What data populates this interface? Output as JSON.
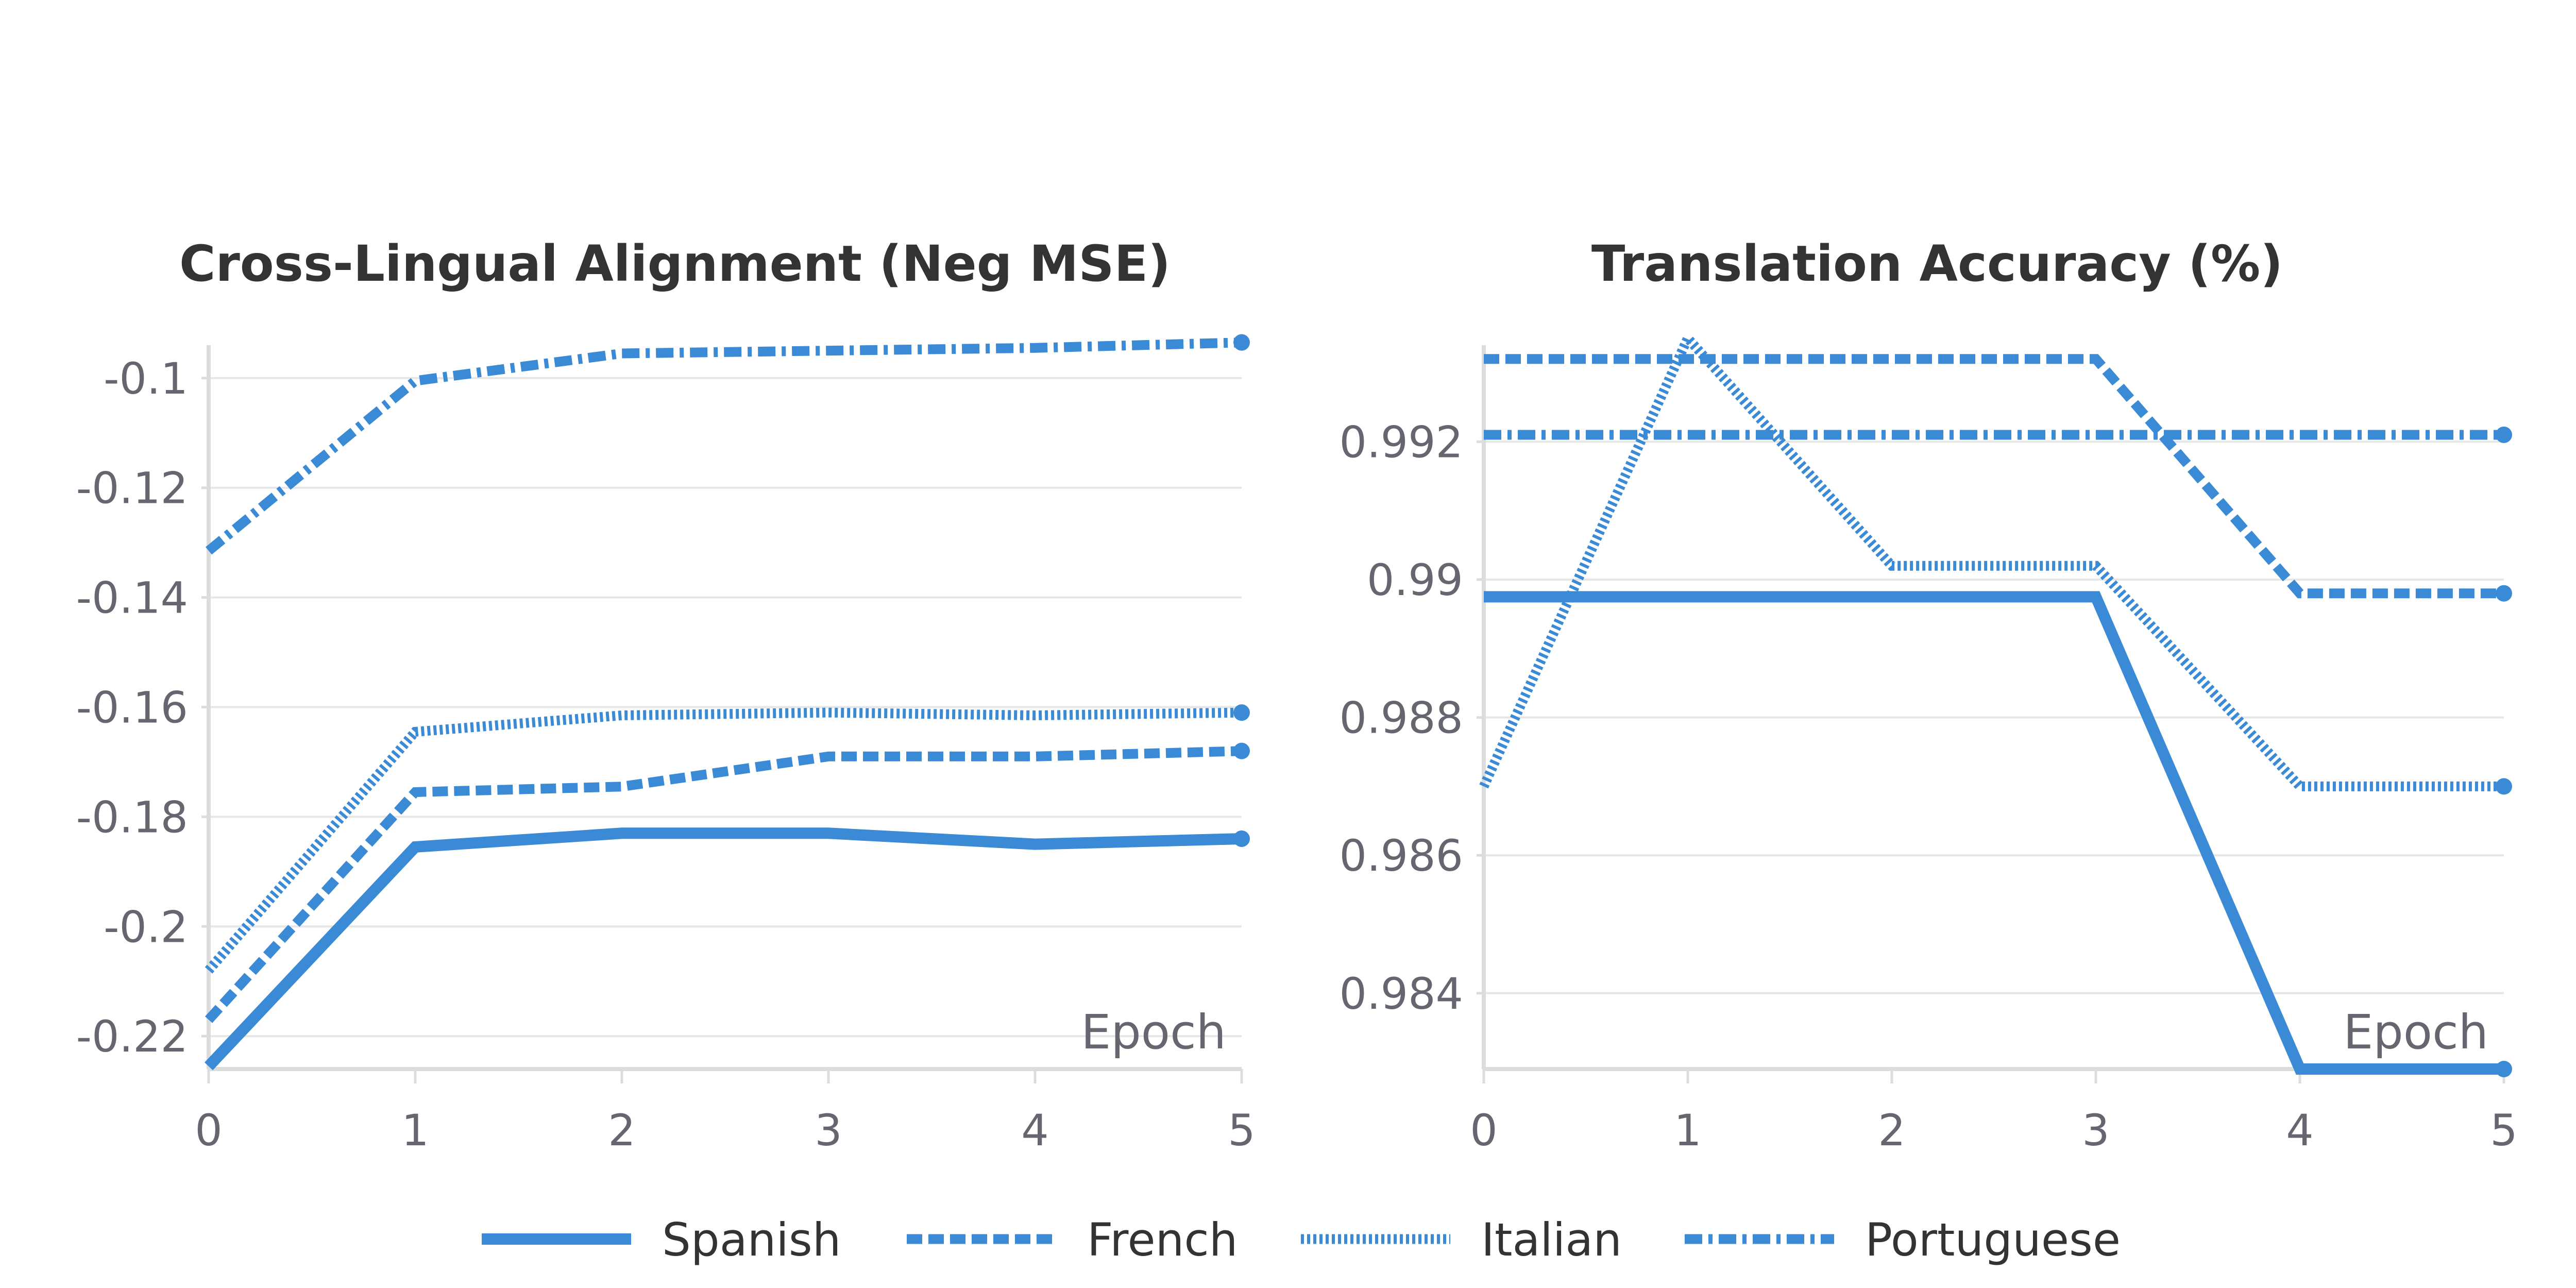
{
  "colors": {
    "series": "#3a8ad6",
    "grid": "#e6e6e6",
    "axis": "#dcdcdc",
    "tick_text": "#666670",
    "title_text": "#333333"
  },
  "legend": {
    "placement": "bottom-center",
    "entries": [
      {
        "name": "Spanish",
        "style": "solid"
      },
      {
        "name": "French",
        "style": "dashed"
      },
      {
        "name": "Italian",
        "style": "dotted"
      },
      {
        "name": "Portuguese",
        "style": "dash-dot"
      }
    ]
  },
  "chart_data": [
    {
      "type": "line",
      "title": "Cross-Lingual Alignment (Neg MSE)",
      "xlabel": "Epoch",
      "ylabel": "",
      "x": [
        0,
        1,
        2,
        3,
        4,
        5
      ],
      "xlim": [
        0,
        5
      ],
      "ylim": [
        -0.226,
        -0.094
      ],
      "yticks": [
        -0.22,
        -0.2,
        -0.18,
        -0.16,
        -0.14,
        -0.12,
        -0.1
      ],
      "ytick_labels": [
        "-0.22",
        "-0.2",
        "-0.18",
        "-0.16",
        "-0.14",
        "-0.12",
        "-0.1"
      ],
      "grid": true,
      "series": [
        {
          "name": "Spanish",
          "values": [
            -0.2255,
            -0.1855,
            -0.183,
            -0.183,
            -0.185,
            -0.184
          ]
        },
        {
          "name": "French",
          "values": [
            -0.217,
            -0.1755,
            -0.1745,
            -0.169,
            -0.169,
            -0.168
          ]
        },
        {
          "name": "Italian",
          "values": [
            -0.208,
            -0.1645,
            -0.1615,
            -0.161,
            -0.1615,
            -0.161
          ]
        },
        {
          "name": "Portuguese",
          "values": [
            -0.1315,
            -0.1005,
            -0.0955,
            -0.095,
            -0.0945,
            -0.0935
          ]
        }
      ]
    },
    {
      "type": "line",
      "title": "Translation Accuracy (%)",
      "xlabel": "Epoch",
      "ylabel": "",
      "x": [
        0,
        1,
        2,
        3,
        4,
        5
      ],
      "xlim": [
        0,
        5
      ],
      "ylim": [
        0.9829,
        0.9934
      ],
      "yticks": [
        0.984,
        0.986,
        0.988,
        0.99,
        0.992
      ],
      "ytick_labels": [
        "0.984",
        "0.986",
        "0.988",
        "0.99",
        "0.992"
      ],
      "grid": true,
      "series": [
        {
          "name": "Spanish",
          "values": [
            0.98975,
            0.98975,
            0.98975,
            0.98975,
            0.9829,
            0.9829
          ]
        },
        {
          "name": "French",
          "values": [
            0.9932,
            0.9932,
            0.9932,
            0.9932,
            0.9898,
            0.9898
          ]
        },
        {
          "name": "Italian",
          "values": [
            0.987,
            0.9935,
            0.9902,
            0.9902,
            0.987,
            0.987
          ]
        },
        {
          "name": "Portuguese",
          "values": [
            0.9921,
            0.9921,
            0.9921,
            0.9921,
            0.9921,
            0.9921
          ]
        }
      ]
    }
  ]
}
